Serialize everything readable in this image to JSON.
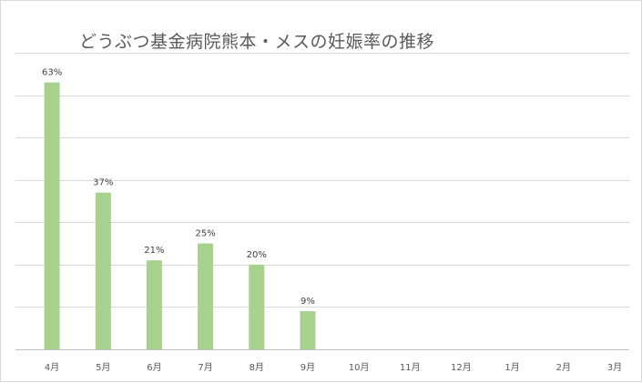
{
  "chart_data": {
    "type": "bar",
    "title": "どうぶつ基金病院熊本・メスの妊娠率の推移",
    "categories": [
      "4月",
      "5月",
      "6月",
      "7月",
      "8月",
      "9月",
      "10月",
      "11月",
      "12月",
      "1月",
      "2月",
      "3月"
    ],
    "values": [
      63,
      37,
      21,
      25,
      20,
      9,
      null,
      null,
      null,
      null,
      null,
      null
    ],
    "data_labels": [
      "63%",
      "37%",
      "21%",
      "25%",
      "20%",
      "9%",
      "",
      "",
      "",
      "",
      "",
      ""
    ],
    "xlabel": "",
    "ylabel": "",
    "ylim": [
      0,
      70
    ],
    "grid": true,
    "legend": "none",
    "bar_color": "#a9d18e"
  }
}
